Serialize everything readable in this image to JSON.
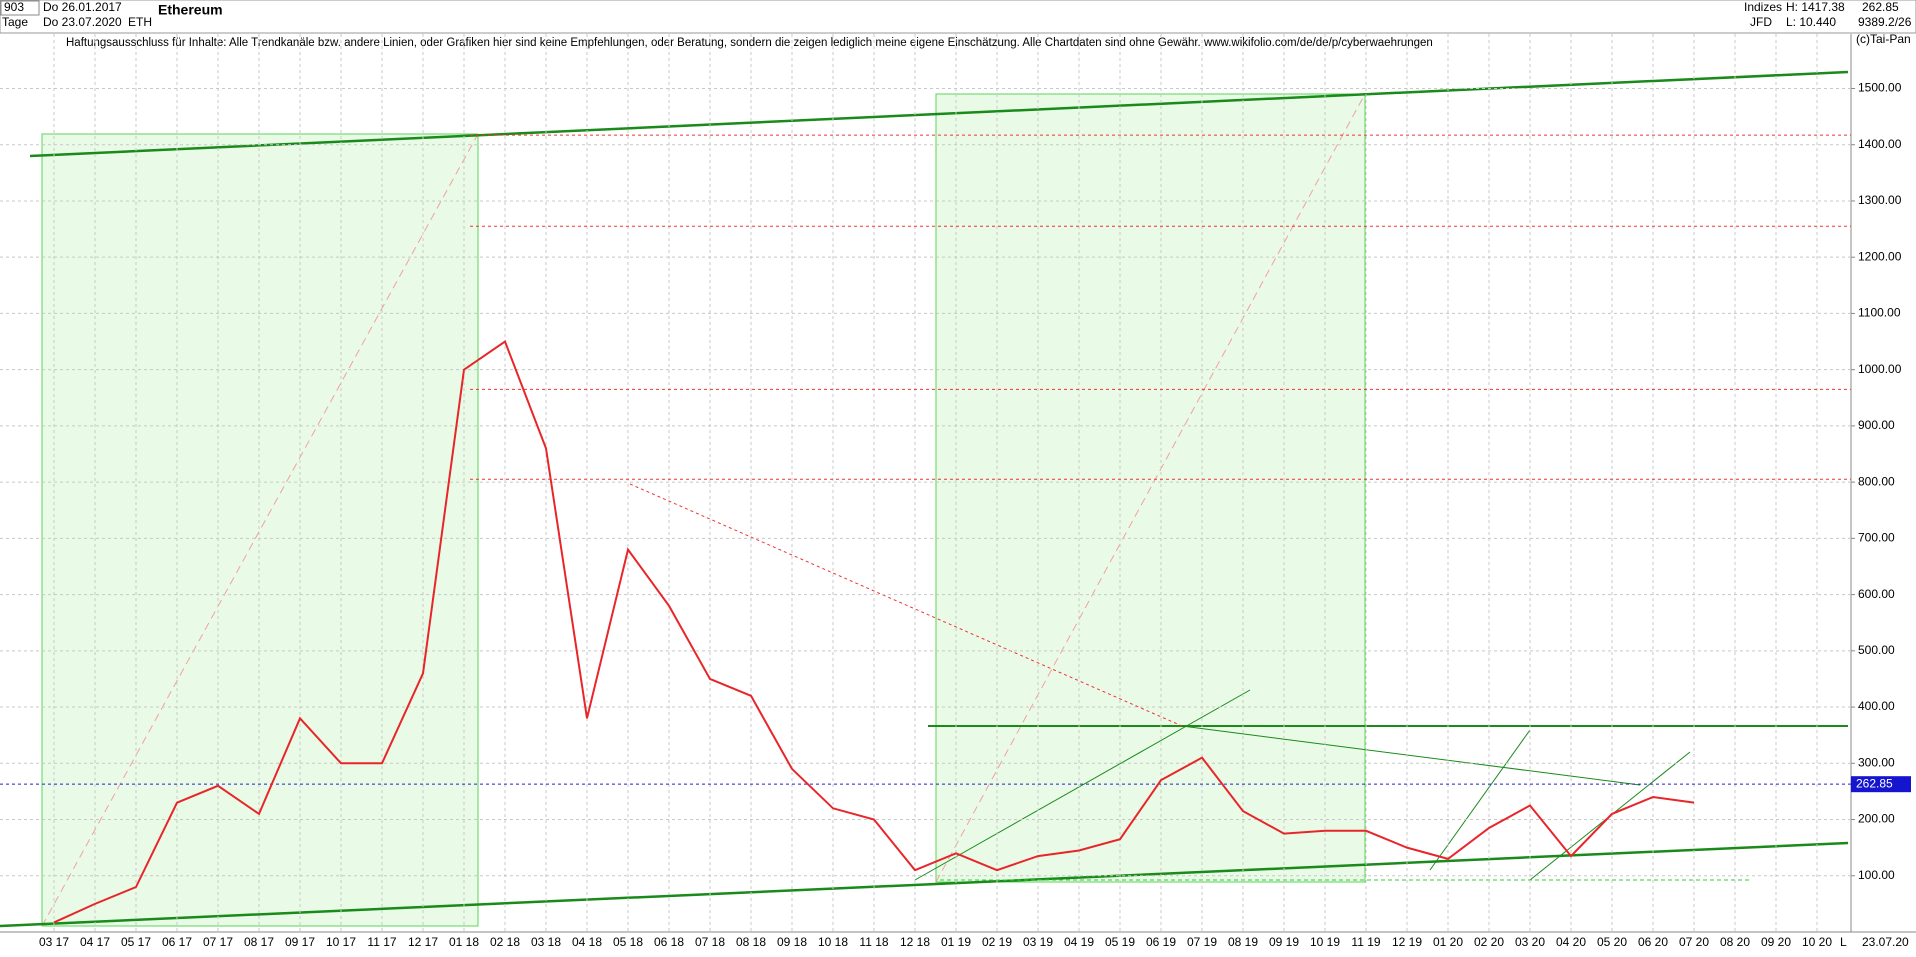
{
  "header": {
    "id": "903",
    "start_date": "Do 26.01.2017",
    "period": "Tage",
    "end_date": "Do 23.07.2020",
    "symbol": "ETH",
    "name": "Ethereum",
    "disclaimer": "Haftungsausschluss für Inhalte: Alle Trendkanäle bzw. andere Linien, oder Grafiken hier sind keine Empfehlungen, oder Beratung, sondern die zeigen lediglich meine eigene Einschätzung. Alle Chartdaten sind ohne Gewähr.  www.wikifolio.com/de/de/p/cyberwaehrungen",
    "group": "Indizes",
    "broker": "JFD",
    "high": "H: 1417.38",
    "low": "L: 10.440",
    "last": "262.85",
    "volume": "9389.2/26",
    "copyright": "(c)Tai-Pan",
    "axis_date": "23.07.20",
    "axis_mode": "L"
  },
  "chart_data": {
    "type": "line",
    "categories": [
      "03 17",
      "04 17",
      "05 17",
      "06 17",
      "07 17",
      "08 17",
      "09 17",
      "10 17",
      "11 17",
      "12 17",
      "01 18",
      "02 18",
      "03 18",
      "04 18",
      "05 18",
      "06 18",
      "07 18",
      "08 18",
      "09 18",
      "10 18",
      "11 18",
      "12 18",
      "01 19",
      "02 19",
      "03 19",
      "04 19",
      "05 19",
      "06 19",
      "07 19",
      "08 19",
      "09 19",
      "10 19",
      "11 19",
      "12 19",
      "01 20",
      "02 20",
      "03 20",
      "04 20",
      "05 20",
      "06 20",
      "07 20",
      "08 20",
      "09 20",
      "10 20"
    ],
    "series": [
      {
        "name": "ETH",
        "color": "#e8262a",
        "values": [
          17,
          50,
          80,
          230,
          260,
          210,
          380,
          300,
          300,
          460,
          1000,
          1050,
          860,
          380,
          680,
          580,
          450,
          420,
          290,
          220,
          200,
          110,
          140,
          110,
          135,
          145,
          165,
          270,
          310,
          215,
          175,
          180,
          180,
          150,
          130,
          185,
          225,
          135,
          210,
          240,
          230,
          null,
          null,
          null
        ]
      }
    ],
    "last_price": 262.85,
    "levels": [
      1417,
      1255,
      965,
      805
    ],
    "ylim": [
      0,
      1620
    ],
    "yticks": [
      {
        "value": 100,
        "label": "100.00"
      },
      {
        "value": 200,
        "label": "200.00"
      },
      {
        "value": 300,
        "label": "300.00"
      },
      {
        "value": 400,
        "label": "400.00"
      },
      {
        "value": 500,
        "label": "500.00"
      },
      {
        "value": 600,
        "label": "600.00"
      },
      {
        "value": 700,
        "label": "700.00"
      },
      {
        "value": 800,
        "label": "800.00"
      },
      {
        "value": 900,
        "label": "900.00"
      },
      {
        "value": 1000,
        "label": "1000.00"
      },
      {
        "value": 1100,
        "label": "1100.00"
      },
      {
        "value": 1200,
        "label": "1200.00"
      },
      {
        "value": 1300,
        "label": "1300.00"
      },
      {
        "value": 1400,
        "label": "1400.00"
      },
      {
        "value": 1500,
        "label": "1500.00"
      }
    ],
    "grid": true
  }
}
